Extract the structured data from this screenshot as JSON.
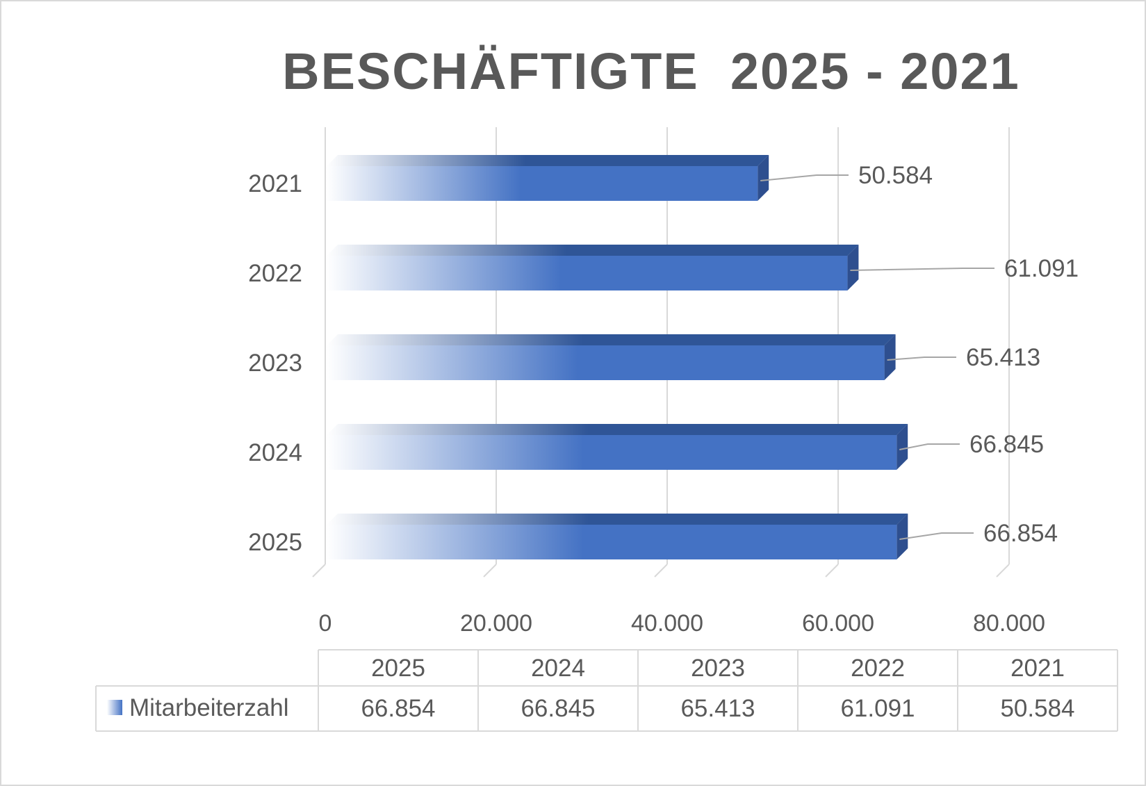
{
  "chart_data": {
    "type": "bar",
    "orientation": "horizontal",
    "title": "BESCHÄFTIGTE  2025 - 2021",
    "categories": [
      "2025",
      "2024",
      "2023",
      "2022",
      "2021"
    ],
    "series": [
      {
        "name": "Mitarbeiterzahl",
        "values": [
          66854,
          66845,
          65413,
          61091,
          50584
        ],
        "labels": [
          "66.854",
          "66.845",
          "65.413",
          "61.091",
          "50.584"
        ]
      }
    ],
    "x_ticks": [
      "0",
      "20.000",
      "40.000",
      "60.000",
      "80.000"
    ],
    "xlim": [
      0,
      80000
    ],
    "grid": true,
    "data_table": true,
    "colors": {
      "bar": "#4472c4",
      "bar_top": "#2f5597",
      "bar_side": "#2e4f8f",
      "grid": "#d9d9d9",
      "text": "#595959"
    }
  }
}
